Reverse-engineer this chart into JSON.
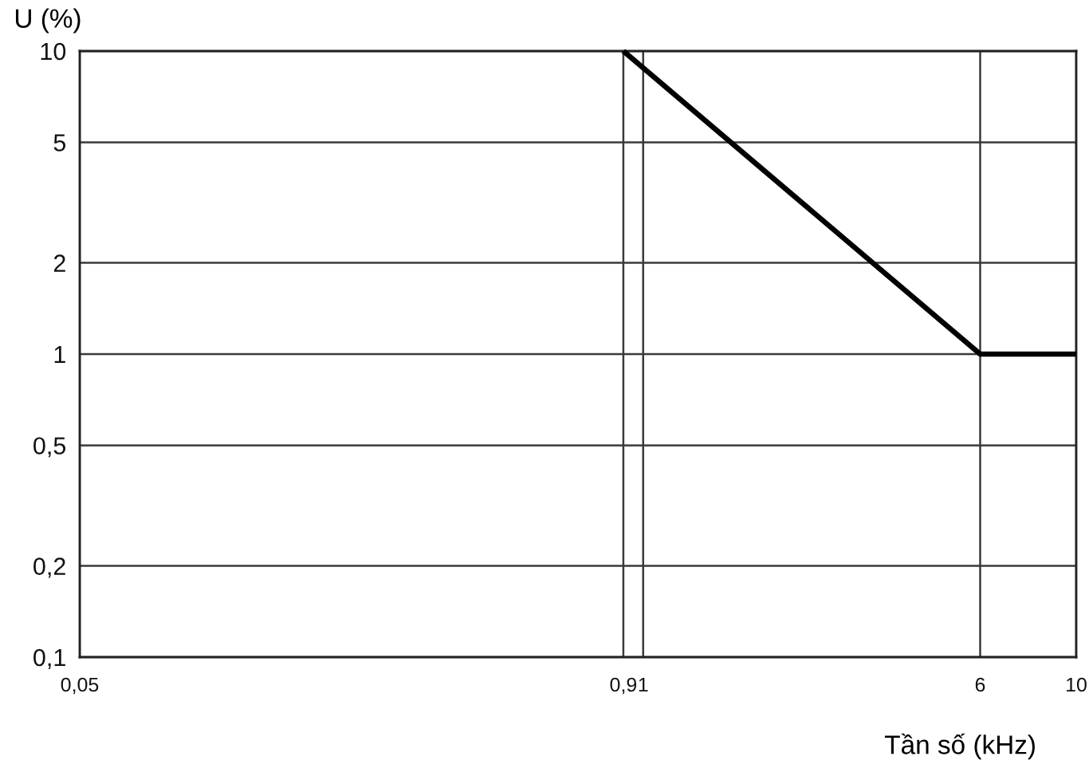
{
  "chart_data": {
    "type": "line",
    "xlabel": "Tần số (kHz)",
    "ylabel": "U (%)",
    "x": [
      0.9,
      6,
      10
    ],
    "series": [
      {
        "color": "#000000",
        "values": [
          10,
          1,
          1
        ]
      }
    ],
    "xlim": [
      0.05,
      10
    ],
    "ylim": [
      0.1,
      10
    ],
    "xticks": [
      {
        "value": 0.05,
        "label": "0,05"
      },
      {
        "value": 0.9,
        "label": "0,9"
      },
      1,
      6,
      10
    ],
    "yticks": [
      {
        "value": 0.1,
        "label": "0,1"
      },
      {
        "value": 0.2,
        "label": "0,2"
      },
      {
        "value": 0.5,
        "label": "0,5"
      },
      1,
      2,
      5,
      10
    ],
    "log": "xy",
    "grid": true,
    "line_style": "solid"
  }
}
